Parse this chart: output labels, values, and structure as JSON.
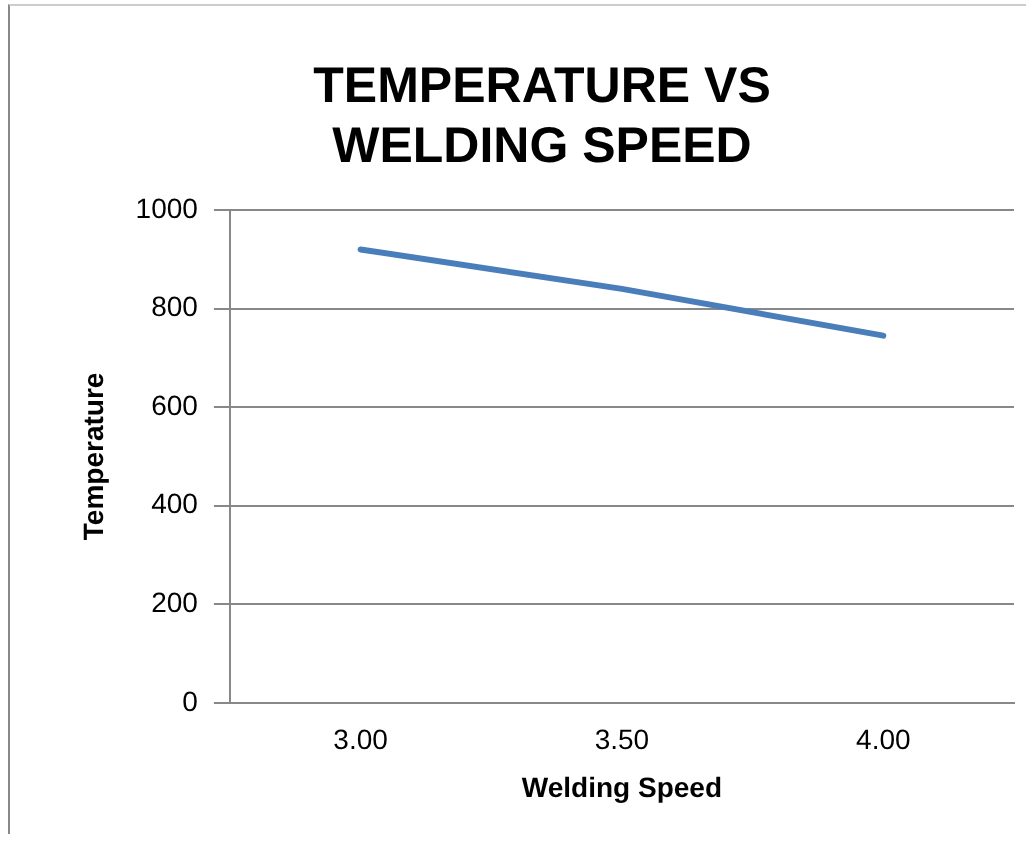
{
  "chart_data": {
    "type": "line",
    "title": "TEMPERATURE VS\nWELDING SPEED",
    "xlabel": "Welding Speed",
    "ylabel": "Temperature",
    "categories": [
      "3.00",
      "3.50",
      "4.00"
    ],
    "series": [
      {
        "color": "#4a7ebb",
        "values": [
          920,
          840,
          745
        ]
      }
    ],
    "ylim": [
      0,
      1000
    ],
    "yticks": [
      0,
      200,
      400,
      600,
      800,
      1000
    ],
    "grid": "y",
    "legend": false,
    "marker": "none",
    "line_style": "solid"
  }
}
